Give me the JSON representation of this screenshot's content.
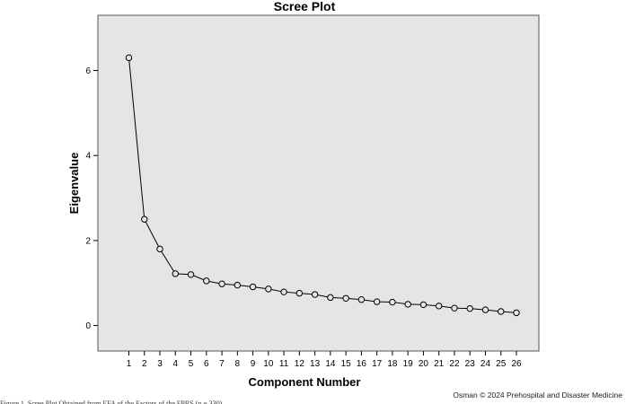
{
  "chart_data": {
    "type": "line",
    "title": "Scree Plot",
    "xlabel": "Component Number",
    "ylabel": "Eigenvalue",
    "categories": [
      "1",
      "2",
      "3",
      "4",
      "5",
      "6",
      "7",
      "8",
      "9",
      "10",
      "11",
      "12",
      "13",
      "14",
      "15",
      "16",
      "17",
      "18",
      "19",
      "20",
      "21",
      "22",
      "23",
      "24",
      "25",
      "26"
    ],
    "values": [
      6.3,
      2.5,
      1.8,
      1.22,
      1.2,
      1.05,
      0.98,
      0.95,
      0.91,
      0.86,
      0.79,
      0.76,
      0.73,
      0.66,
      0.64,
      0.61,
      0.56,
      0.55,
      0.5,
      0.49,
      0.46,
      0.41,
      0.4,
      0.37,
      0.33,
      0.3
    ],
    "yticks": [
      0,
      2,
      4,
      6
    ],
    "ylim": [
      -0.6,
      7.3
    ],
    "grid": false,
    "background_color": "#e5e5e5",
    "line_color": "#000000"
  },
  "credit": "Osman © 2024 Prehospital and Disaster Medicine",
  "caption": "Figure 1. Scree Plot Obtained from EFA of the Factors of the FPRS (n = 330)."
}
